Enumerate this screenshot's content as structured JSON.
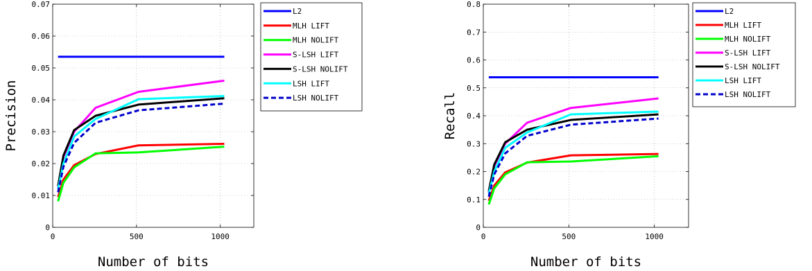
{
  "chart_data": [
    {
      "type": "line",
      "title": "",
      "xlabel": "Number of bits",
      "ylabel": "Precision",
      "xlim": [
        0,
        1200
      ],
      "ylim": [
        0,
        0.07
      ],
      "xticks": [
        0,
        500,
        1000
      ],
      "xtick_labels": [
        "0",
        "500",
        "1000"
      ],
      "yticks": [
        0,
        0.01,
        0.02,
        0.03,
        0.04,
        0.05,
        0.06,
        0.07
      ],
      "ytick_labels": [
        "0",
        "0.01",
        "0.02",
        "0.03",
        "0.04",
        "0.05",
        "0.06",
        "0.07"
      ],
      "grid": true,
      "legend_position": "outside-right",
      "x": [
        32,
        64,
        128,
        256,
        512,
        1024
      ],
      "series": [
        {
          "name": "L2",
          "color": "#0000ff",
          "style": "solid",
          "values": [
            0.0535,
            0.0535,
            0.0535,
            0.0535,
            0.0535,
            0.0535
          ]
        },
        {
          "name": "MLH LIFT",
          "color": "#ff0000",
          "style": "solid",
          "values": [
            0.0095,
            0.015,
            0.0195,
            0.023,
            0.0257,
            0.0262
          ]
        },
        {
          "name": "MLH NOLIFT",
          "color": "#00ff00",
          "style": "solid",
          "values": [
            0.0082,
            0.014,
            0.0188,
            0.0232,
            0.0235,
            0.0253
          ]
        },
        {
          "name": "S-LSH LIFT",
          "color": "#ff00ff",
          "style": "solid",
          "values": [
            0.0125,
            0.022,
            0.03,
            0.0375,
            0.0425,
            0.046
          ]
        },
        {
          "name": "S-LSH NOLIFT",
          "color": "#000000",
          "style": "solid",
          "values": [
            0.013,
            0.0225,
            0.0305,
            0.035,
            0.0385,
            0.0405
          ]
        },
        {
          "name": "LSH LIFT",
          "color": "#00ffff",
          "style": "solid",
          "values": [
            0.012,
            0.02,
            0.0285,
            0.034,
            0.0402,
            0.0412
          ]
        },
        {
          "name": "LSH NOLIFT",
          "color": "#0000cc",
          "style": "dashed",
          "values": [
            0.011,
            0.019,
            0.0265,
            0.0328,
            0.0367,
            0.0388
          ]
        }
      ]
    },
    {
      "type": "line",
      "title": "",
      "xlabel": "Number of bits",
      "ylabel": "Recall",
      "xlim": [
        0,
        1200
      ],
      "ylim": [
        0,
        0.8
      ],
      "xticks": [
        0,
        500,
        1000
      ],
      "xtick_labels": [
        "0",
        "500",
        "1000"
      ],
      "yticks": [
        0,
        0.1,
        0.2,
        0.3,
        0.4,
        0.5,
        0.6,
        0.7,
        0.8
      ],
      "ytick_labels": [
        "0",
        "0.1",
        "0.2",
        "0.3",
        "0.4",
        "0.5",
        "0.6",
        "0.7",
        "0.8"
      ],
      "grid": true,
      "legend_position": "outside-right",
      "x": [
        32,
        64,
        128,
        256,
        512,
        1024
      ],
      "series": [
        {
          "name": "L2",
          "color": "#0000ff",
          "style": "solid",
          "values": [
            0.538,
            0.538,
            0.538,
            0.538,
            0.538,
            0.538
          ]
        },
        {
          "name": "MLH LIFT",
          "color": "#ff0000",
          "style": "solid",
          "values": [
            0.095,
            0.15,
            0.197,
            0.232,
            0.258,
            0.263
          ]
        },
        {
          "name": "MLH NOLIFT",
          "color": "#00ff00",
          "style": "solid",
          "values": [
            0.082,
            0.14,
            0.19,
            0.233,
            0.236,
            0.255
          ]
        },
        {
          "name": "S-LSH LIFT",
          "color": "#ff00ff",
          "style": "solid",
          "values": [
            0.125,
            0.22,
            0.3,
            0.375,
            0.428,
            0.462
          ]
        },
        {
          "name": "S-LSH NOLIFT",
          "color": "#000000",
          "style": "solid",
          "values": [
            0.13,
            0.225,
            0.305,
            0.35,
            0.385,
            0.405
          ]
        },
        {
          "name": "LSH LIFT",
          "color": "#00ffff",
          "style": "solid",
          "values": [
            0.12,
            0.2,
            0.285,
            0.34,
            0.405,
            0.415
          ]
        },
        {
          "name": "LSH NOLIFT",
          "color": "#0000cc",
          "style": "dashed",
          "values": [
            0.11,
            0.19,
            0.265,
            0.328,
            0.368,
            0.39
          ]
        }
      ]
    }
  ]
}
